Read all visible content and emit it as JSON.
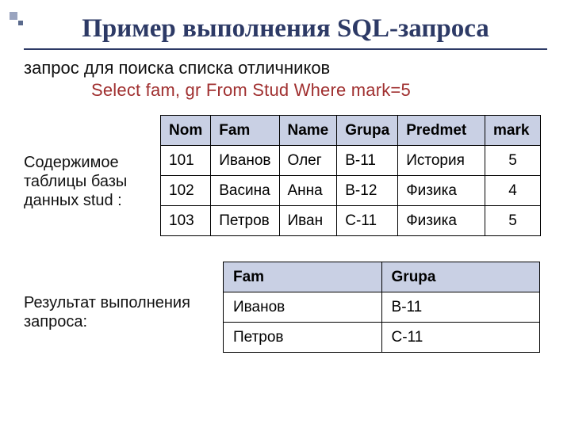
{
  "title": "Пример выполнения SQL-запроса",
  "subtitle": "запрос для поиска списка отличников",
  "sql": "Select fam, gr  From Stud  Where mark=5",
  "table1": {
    "label": "Содержимое таблицы базы данных stud :",
    "columns": [
      "Nom",
      "Fam",
      "Name",
      "Grupa",
      "Predmet",
      "mark"
    ],
    "rows": [
      [
        "101",
        "Иванов",
        "Олег",
        "В-11",
        "История",
        "5"
      ],
      [
        "102",
        "Васина",
        "Анна",
        "В-12",
        "Физика",
        "4"
      ],
      [
        "103",
        "Петров",
        "Иван",
        "С-11",
        "Физика",
        "5"
      ]
    ],
    "col_widths": [
      "60px",
      "80px",
      "72px",
      "72px",
      "110px",
      "70px"
    ],
    "header_bg": "#c9d0e4"
  },
  "table2": {
    "label": "Результат выполнения запроса:",
    "columns": [
      "Fam",
      "Grupa"
    ],
    "rows": [
      [
        "Иванов",
        "В-11"
      ],
      [
        "Петров",
        "С-11"
      ]
    ],
    "col_widths": [
      "200px",
      "200px"
    ],
    "header_bg": "#c9d0e4"
  }
}
